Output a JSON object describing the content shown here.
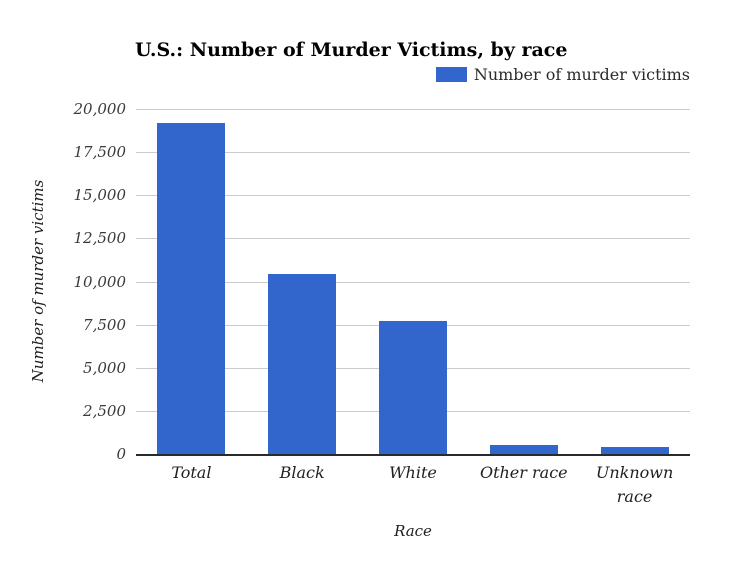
{
  "chart_data": {
    "type": "bar",
    "title": "U.S.: Number of Murder Victims, by race",
    "legend": {
      "position": "top-right",
      "series_label": "Number of murder victims"
    },
    "xlabel": "Race",
    "ylabel": "Number of murder victims",
    "categories": [
      "Total",
      "Black",
      "White",
      "Other race",
      "Unknown race"
    ],
    "series": [
      {
        "name": "Number of murder victims",
        "values": [
          19200,
          10450,
          7700,
          550,
          400
        ]
      }
    ],
    "ylim": [
      0,
      20000
    ],
    "ytick_values": [
      0,
      2500,
      5000,
      7500,
      10000,
      12500,
      15000,
      17500,
      20000
    ],
    "ytick_labels": [
      "0",
      "2,500",
      "5,000",
      "7,500",
      "10,000",
      "12,500",
      "15,000",
      "17,500",
      "20,000"
    ],
    "grid": true,
    "colors": {
      "bar": "#3366cc",
      "gridline": "#cccccc",
      "axis_line": "#2a2a2a",
      "title_text": "#000000",
      "tick_text": "#3a3a3a",
      "background": "#ffffff"
    }
  }
}
